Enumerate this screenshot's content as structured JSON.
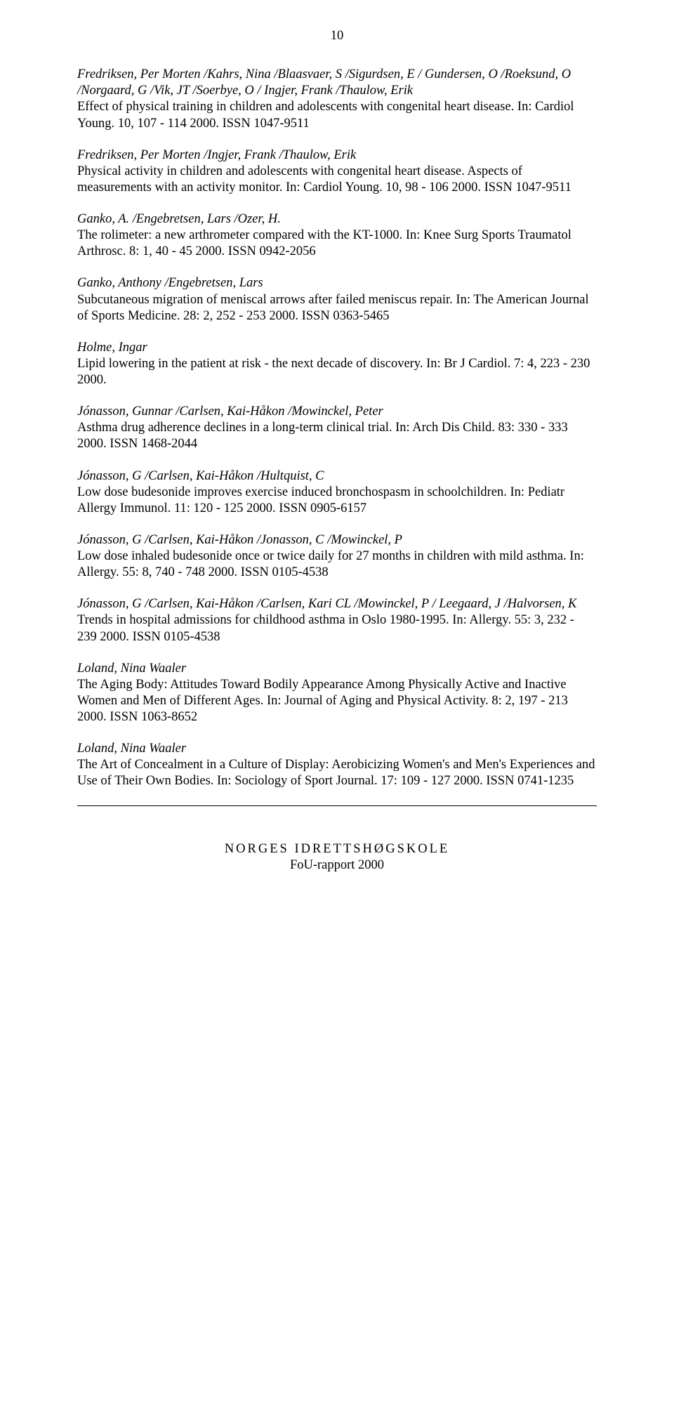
{
  "page_number": "10",
  "entries": [
    {
      "authors": "Fredriksen, Per Morten /Kahrs, Nina /Blaasvaer, S /Sigurdsen, E / Gundersen, O /Roeksund, O /Norgaard, G /Vik, JT /Soerbye, O / Ingjer, Frank /Thaulow, Erik",
      "body": "Effect of physical training in children and adolescents with congenital heart disease.  In: Cardiol Young.  10, 107 - 114 2000.  ISSN 1047-9511"
    },
    {
      "authors": "Fredriksen, Per Morten /Ingjer, Frank /Thaulow, Erik",
      "body": "Physical activity in children and adolescents with congenital heart disease. Aspects of measurements with an activity monitor.  In: Cardiol Young. 10, 98 - 106 2000.  ISSN 1047-9511"
    },
    {
      "authors": "Ganko, A. /Engebretsen, Lars /Ozer, H.",
      "body": "The rolimeter: a new arthrometer compared with the KT-1000.  In: Knee Surg Sports Traumatol Arthrosc.  8: 1, 40 - 45 2000.  ISSN 0942-2056"
    },
    {
      "authors": "Ganko, Anthony /Engebretsen, Lars",
      "body": "Subcutaneous migration of meniscal arrows after failed meniscus repair.  In: The American Journal of Sports Medicine.  28: 2, 252 - 253 2000.  ISSN 0363-5465"
    },
    {
      "authors": "Holme, Ingar",
      "body": "Lipid lowering in the patient at risk - the next decade of discovery.  In: Br J Cardiol.  7: 4, 223 - 230 2000."
    },
    {
      "authors": "Jónasson, Gunnar /Carlsen, Kai-Håkon /Mowinckel, Peter",
      "body": "Asthma drug adherence declines in a long-term clinical trial.  In: Arch Dis Child. 83: 330 - 333 2000.  ISSN 1468-2044"
    },
    {
      "authors": "Jónasson, G /Carlsen, Kai-Håkon /Hultquist, C",
      "body": "Low dose budesonide improves exercise induced bronchospasm in schoolchildren. In: Pediatr Allergy Immunol.  11: 120 - 125 2000.  ISSN 0905-6157"
    },
    {
      "authors": "Jónasson, G /Carlsen, Kai-Håkon /Jonasson, C /Mowinckel, P",
      "body": "Low dose inhaled budesonide once or twice daily for 27 months in children with mild asthma.  In: Allergy.  55: 8, 740 - 748 2000.  ISSN 0105-4538"
    },
    {
      "authors": "Jónasson, G /Carlsen, Kai-Håkon /Carlsen, Kari CL /Mowinckel, P / Leegaard, J /Halvorsen, K",
      "body": "Trends in hospital admissions for childhood asthma in Oslo 1980-1995. In: Allergy.  55: 3, 232 - 239 2000.  ISSN 0105-4538"
    },
    {
      "authors": "Loland, Nina Waaler",
      "body": "The Aging Body: Attitudes Toward Bodily Appearance Among Physically Active and Inactive Women and Men of Different Ages.  In: Journal of Aging and Physical Activity.  8: 2, 197 - 213 2000.  ISSN 1063-8652"
    },
    {
      "authors": "Loland, Nina Waaler",
      "body": "The Art of Concealment in a Culture of Display: Aerobicizing Women's and Men's Experiences and Use of Their Own Bodies.  In: Sociology of Sport Journal. 17: 109 - 127 2000.  ISSN 0741-1235"
    }
  ],
  "footer": {
    "line1": "NORGES IDRETTSHØGSKOLE",
    "line2": "FoU-rapport 2000"
  }
}
